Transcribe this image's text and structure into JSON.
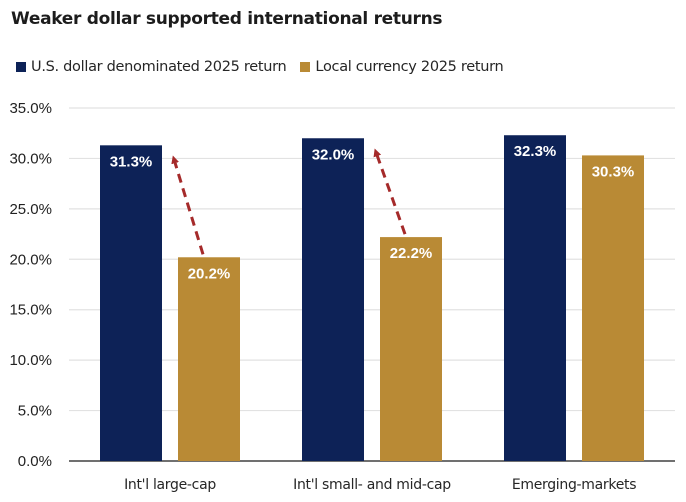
{
  "chart_data": {
    "type": "bar",
    "title": "Weaker dollar supported international returns",
    "xlabel": "",
    "ylabel": "",
    "ylim": [
      0,
      35
    ],
    "yticks": [
      "0.0%",
      "5.0%",
      "10.0%",
      "15.0%",
      "20.0%",
      "25.0%",
      "30.0%",
      "35.0%"
    ],
    "ytick_values": [
      0,
      5,
      10,
      15,
      20,
      25,
      30,
      35
    ],
    "grid": true,
    "legend_position": "top-left",
    "categories": [
      "Int'l large-cap",
      "Int'l small- and mid-cap",
      "Emerging-markets"
    ],
    "series": [
      {
        "name": "U.S. dollar denominated 2025 return",
        "color": "#0d2257",
        "values": [
          31.3,
          32.0,
          32.3
        ],
        "labels": [
          "31.3%",
          "32.0%",
          "32.3%"
        ]
      },
      {
        "name": "Local currency 2025 return",
        "color": "#b98a35",
        "values": [
          20.2,
          22.2,
          30.3
        ],
        "labels": [
          "20.2%",
          "22.2%",
          "30.3%"
        ]
      }
    ],
    "annotations": [
      {
        "type": "dashed-arrow",
        "from": "Local currency 2025 return",
        "to": "U.S. dollar denominated 2025 return",
        "category": "Int'l large-cap",
        "color": "#a52a2a"
      },
      {
        "type": "dashed-arrow",
        "from": "Local currency 2025 return",
        "to": "U.S. dollar denominated 2025 return",
        "category": "Int'l small- and mid-cap",
        "color": "#a52a2a"
      }
    ]
  }
}
